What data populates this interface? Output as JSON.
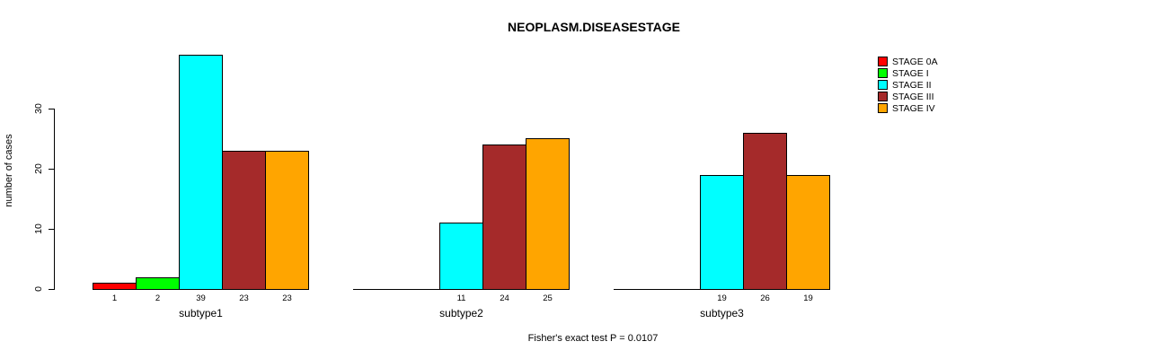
{
  "title": "NEOPLASM.DISEASESTAGE",
  "footer": "Fisher's exact test P = 0.0107",
  "chart_data": {
    "type": "bar",
    "title": "NEOPLASM.DISEASESTAGE",
    "xlabel": "",
    "ylabel": "number of cases",
    "footer": "Fisher's exact test P = 0.0107",
    "categories": [
      "subtype1",
      "subtype2",
      "subtype3"
    ],
    "series": [
      {
        "name": "STAGE 0A",
        "color": "#FF0000",
        "values": [
          1,
          0,
          0
        ]
      },
      {
        "name": "STAGE I",
        "color": "#00FF00",
        "values": [
          2,
          0,
          0
        ]
      },
      {
        "name": "STAGE II",
        "color": "#00FFFF",
        "values": [
          39,
          11,
          19
        ]
      },
      {
        "name": "STAGE III",
        "color": "#A52A2A",
        "values": [
          23,
          24,
          26
        ]
      },
      {
        "name": "STAGE IV",
        "color": "#FFA500",
        "values": [
          23,
          25,
          19
        ]
      }
    ],
    "bar_value_labels": {
      "subtype1": [
        "1",
        "2",
        "39",
        "23",
        "23"
      ],
      "subtype2": [
        "",
        "",
        "11",
        "24",
        "25"
      ],
      "subtype3": [
        "",
        "",
        "19",
        "26",
        "19"
      ]
    },
    "yticks": [
      0,
      10,
      20,
      30
    ],
    "ylim": [
      0,
      39
    ],
    "grid": false,
    "legend_position": "right",
    "axis_color": "#000000",
    "background_color": "#FFFFFF"
  }
}
